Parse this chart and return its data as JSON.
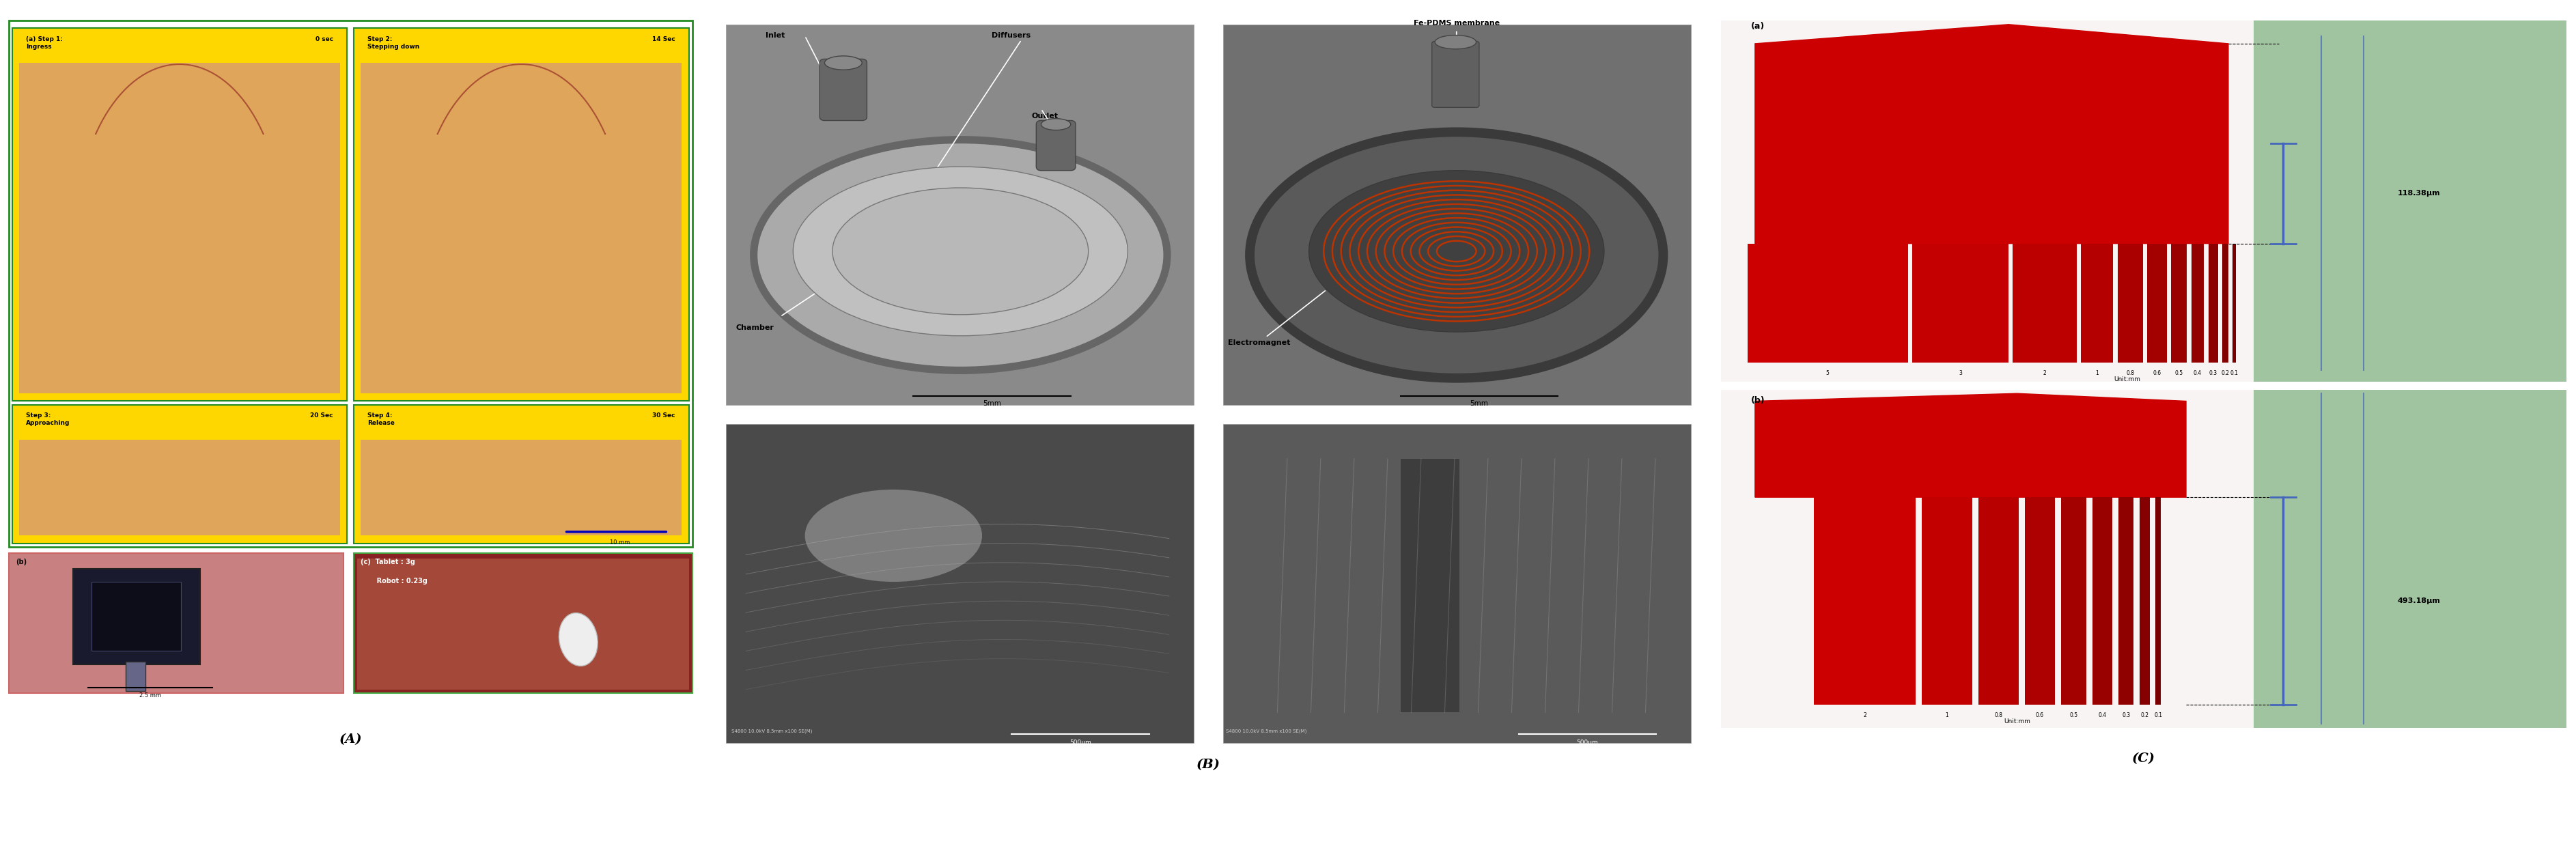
{
  "fig_width": 37.73,
  "fig_height": 12.58,
  "background_color": "#ffffff",
  "panel_A": {
    "label": "(A)",
    "subpanels": [
      {
        "title_left": "(a) Step 1:\nIngress",
        "title_right": "0 sec",
        "bg": "#FFD700"
      },
      {
        "title_left": "Step 2:\nStepping down",
        "title_right": "14 Sec",
        "bg": "#FFD700"
      },
      {
        "title_left": "Step 3:\nApproaching",
        "title_right": "20 Sec",
        "bg": "#FFD700"
      },
      {
        "title_left": "Step 4:\nRelease",
        "title_right": "30 Sec",
        "bg": "#FFD700"
      }
    ],
    "outer_border": "#228B22",
    "bottom_b_bg": "#D08888",
    "bottom_c_bg": "#CC4444",
    "scale_text": "10 mm",
    "scale_b": "2.5 mm"
  },
  "panel_B": {
    "label": "(B)",
    "bg_top": "#808080",
    "bg_disk": "#A0A0A0",
    "bg_disk2": "#707070",
    "coil_color": "#CC3300",
    "sem_bg": "#505050",
    "sem_light": "#909090"
  },
  "panel_C": {
    "label": "(C)",
    "bg_white": "#F5F0F0",
    "bg_green": "#A8C8A8",
    "bar_color": "#CC0000",
    "blue_color": "#4466BB",
    "meas_a": "118.38μm",
    "meas_b": "493.18μm",
    "labels_a": [
      "5",
      "3",
      "2",
      "1",
      "0.8",
      "0.6",
      "0.5",
      "0.4",
      "0.3",
      "0.2",
      "0.1"
    ],
    "labels_b": [
      "2",
      "1",
      "0.8",
      "0.6",
      "0.5",
      "0.4",
      "0.3",
      "0.2",
      "0.1"
    ]
  }
}
